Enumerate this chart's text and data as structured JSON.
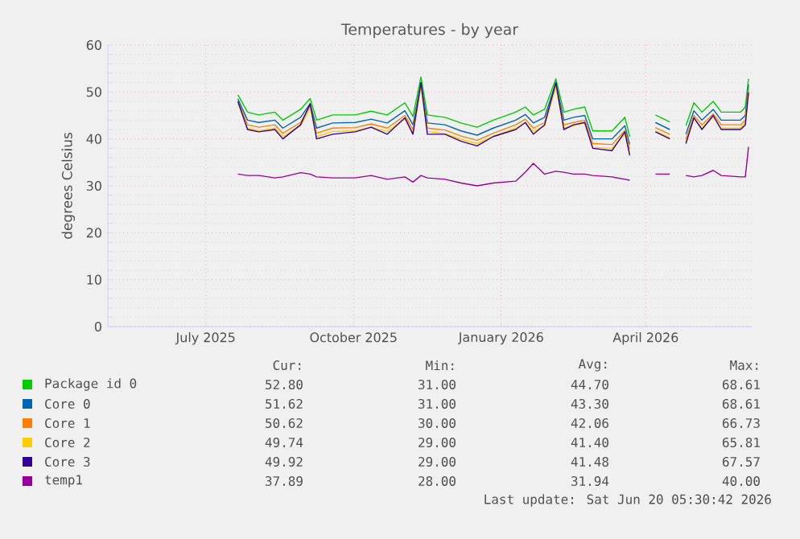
{
  "chart_data": {
    "type": "line",
    "title": "Temperatures - by year",
    "ylabel": "degrees Celsius",
    "x": [
      "2025-07-21",
      "2025-07-27",
      "2025-08-03",
      "2025-08-13",
      "2025-08-18",
      "2025-08-29",
      "2025-09-04",
      "2025-09-08",
      "2025-09-18",
      "2025-10-02",
      "2025-10-12",
      "2025-10-22",
      "2025-11-02",
      "2025-11-07",
      "2025-11-12",
      "2025-11-16",
      "2025-11-27",
      "2025-12-07",
      "2025-12-17",
      "2025-12-27",
      "2026-01-10",
      "2026-01-16",
      "2026-01-21",
      "2026-01-28",
      "2026-02-04",
      "2026-02-09",
      "2026-02-15",
      "2026-02-22",
      "2026-02-27",
      "2026-03-11",
      "2026-03-19",
      "2026-03-22",
      "2026-03-30",
      "2026-04-07",
      "2026-04-16",
      "2026-04-20",
      "2026-04-26",
      "2026-05-01",
      "2026-05-06",
      "2026-05-13",
      "2026-05-18",
      "2026-05-30",
      "2026-06-02",
      "2026-06-04"
    ],
    "series": [
      {
        "name": "Package id 0",
        "color": "#00cc00",
        "values": [
          49.4,
          45.7,
          45.1,
          45.7,
          44.0,
          46.3,
          48.6,
          44.0,
          45.1,
          45.1,
          45.9,
          45.1,
          47.7,
          44.8,
          53.2,
          45.1,
          44.6,
          43.4,
          42.5,
          44.0,
          45.7,
          46.8,
          45.1,
          46.3,
          52.8,
          45.7,
          46.3,
          46.8,
          41.7,
          41.7,
          44.6,
          40.5,
          null,
          45.1,
          43.6,
          null,
          42.8,
          47.7,
          45.7,
          48.0,
          45.7,
          45.7,
          46.8,
          52.8
        ]
      },
      {
        "name": "Core 0",
        "color": "#0066b3",
        "values": [
          48.5,
          44.0,
          43.5,
          44.0,
          42.3,
          44.6,
          47.5,
          42.3,
          43.4,
          43.5,
          44.2,
          43.4,
          46.0,
          43.0,
          52.0,
          43.4,
          43.0,
          41.7,
          40.8,
          42.3,
          44.0,
          45.2,
          43.4,
          44.6,
          52.0,
          44.0,
          44.6,
          45.0,
          40.0,
          40.0,
          42.8,
          38.8,
          null,
          43.5,
          42.0,
          null,
          41.0,
          46.0,
          44.0,
          46.3,
          44.0,
          44.0,
          45.0,
          51.6
        ]
      },
      {
        "name": "Core 1",
        "color": "#ff8000",
        "values": [
          48.0,
          43.0,
          42.5,
          43.0,
          41.2,
          43.5,
          47.0,
          41.2,
          42.3,
          42.4,
          43.2,
          42.3,
          45.0,
          42.0,
          51.5,
          42.3,
          41.9,
          40.6,
          39.7,
          41.2,
          43.0,
          44.2,
          42.3,
          43.5,
          51.5,
          43.0,
          43.5,
          44.0,
          39.0,
          38.8,
          41.8,
          37.8,
          null,
          42.4,
          41.0,
          null,
          40.0,
          45.0,
          43.0,
          45.3,
          43.0,
          43.0,
          44.0,
          50.6
        ]
      },
      {
        "name": "Core 2",
        "color": "#ffcc00",
        "values": [
          47.5,
          42.3,
          41.7,
          42.3,
          40.5,
          42.8,
          46.5,
          40.5,
          41.6,
          41.7,
          42.5,
          41.6,
          44.3,
          41.3,
          51.0,
          41.6,
          41.1,
          39.9,
          39.0,
          40.5,
          42.3,
          43.4,
          41.6,
          42.8,
          51.0,
          42.3,
          42.8,
          43.4,
          38.2,
          38.0,
          41.0,
          37.0,
          null,
          41.7,
          40.2,
          null,
          39.4,
          44.3,
          42.3,
          44.6,
          42.3,
          42.3,
          43.4,
          49.7
        ]
      },
      {
        "name": "Core 3",
        "color": "#330099",
        "values": [
          48.0,
          42.0,
          41.5,
          42.0,
          40.0,
          43.0,
          47.5,
          40.0,
          41.0,
          41.5,
          42.5,
          41.0,
          44.5,
          41.0,
          52.0,
          41.0,
          41.0,
          39.5,
          38.5,
          40.5,
          42.0,
          43.5,
          41.0,
          43.0,
          52.0,
          42.0,
          43.0,
          43.5,
          38.0,
          37.5,
          41.5,
          36.5,
          null,
          41.5,
          40.0,
          null,
          39.0,
          44.5,
          42.0,
          45.0,
          42.0,
          42.0,
          43.0,
          49.9
        ]
      },
      {
        "name": "temp1",
        "color": "#990099",
        "values": [
          32.5,
          32.2,
          32.2,
          31.7,
          31.9,
          32.8,
          32.5,
          31.9,
          31.7,
          31.7,
          32.2,
          31.4,
          31.9,
          30.8,
          32.2,
          31.7,
          31.4,
          30.6,
          30.0,
          30.6,
          31.0,
          32.9,
          34.8,
          32.5,
          33.1,
          32.9,
          32.5,
          32.5,
          32.2,
          31.9,
          31.4,
          31.2,
          null,
          32.5,
          32.5,
          null,
          32.2,
          31.9,
          32.2,
          33.3,
          32.2,
          31.9,
          31.9,
          38.3
        ]
      }
    ],
    "xlim": [
      "2025-05-01",
      "2026-06-06"
    ],
    "xticks": [
      {
        "value": "2025-07-01",
        "label": "July 2025"
      },
      {
        "value": "2025-10-01",
        "label": "October 2025"
      },
      {
        "value": "2026-01-01",
        "label": "January 2026"
      },
      {
        "value": "2026-04-01",
        "label": "April 2026"
      }
    ],
    "ylim": [
      0,
      60
    ],
    "yticks": [
      0,
      10,
      20,
      30,
      40,
      50,
      60
    ],
    "grid": true,
    "legend": "bottom",
    "marker": "none",
    "line_style": "solid",
    "annotations": [
      "Cur:",
      "Min:",
      "Avg:",
      "Max:",
      "52.80",
      "31.00",
      "44.70",
      "68.61",
      "51.62",
      "31.00",
      "43.30",
      "68.61",
      "50.62",
      "30.00",
      "42.06",
      "66.73",
      "49.74",
      "29.00",
      "41.40",
      "65.81",
      "49.92",
      "29.00",
      "41.48",
      "67.57",
      "37.89",
      "28.00",
      "31.94",
      "40.00",
      "Last update: Sat Jun 20 05:30:42 2026"
    ]
  }
}
